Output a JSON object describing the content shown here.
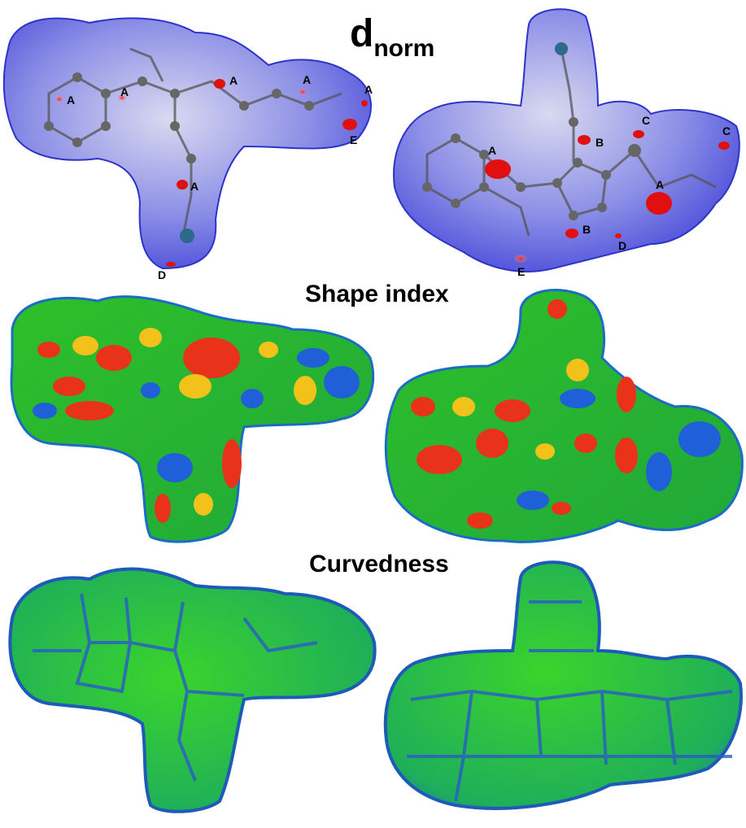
{
  "titles": {
    "dnorm_main": "d",
    "dnorm_sub": "norm",
    "shape_index": "Shape index",
    "curvedness": "Curvedness"
  },
  "left_dnorm_labels": [
    "A",
    "A",
    "A",
    "A",
    "A",
    "A",
    "E",
    "D"
  ],
  "right_dnorm_labels": [
    "A",
    "B",
    "C",
    "C",
    "A",
    "B",
    "D",
    "E"
  ],
  "colors": {
    "dnorm_surface": "#6f74e0",
    "dnorm_contact": "#e01010",
    "shape_green": "#2fbf2a",
    "shape_blue": "#1f5fd8",
    "shape_red": "#e8321a",
    "shape_yellow": "#f2c21a",
    "curv_green": "#22c41f",
    "curv_edge": "#2a5cc8"
  }
}
